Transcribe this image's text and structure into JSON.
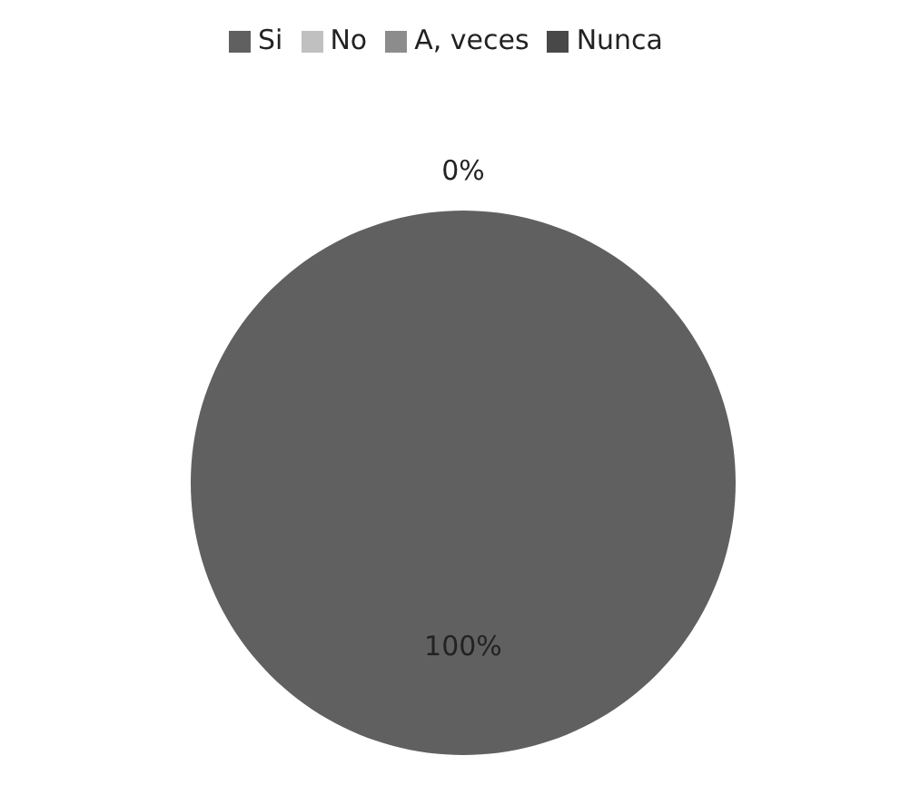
{
  "chart_data": {
    "type": "pie",
    "categories": [
      "Si",
      "No",
      "A, veces",
      "Nunca"
    ],
    "values": [
      100,
      0,
      0,
      0
    ],
    "colors": [
      "#606060",
      "#c0c0c0",
      "#8c8c8c",
      "#484848"
    ],
    "value_labels": [
      "100%",
      "0%",
      null,
      null
    ],
    "legend": "top"
  }
}
